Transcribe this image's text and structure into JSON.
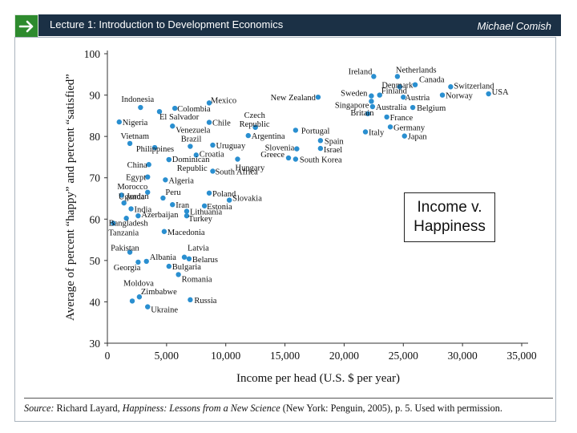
{
  "header": {
    "lecture_title": "Lecture 1: Introduction to Development Economics",
    "author": "Michael Comish",
    "icon": "arrow-right-icon",
    "colors": {
      "band": "#1b3045",
      "arrow_box": "#2e8b2e"
    }
  },
  "callout": {
    "line1": "Income v.",
    "line2": "Happiness"
  },
  "source": {
    "label": "Source:",
    "text_before": "Richard Layard,",
    "book_title": "Happiness: Lessons from a New Science",
    "text_after": "(New York: Penguin, 2005), p. 5. Used with permission."
  },
  "chart_data": {
    "type": "scatter",
    "xlabel": "Income per head (U.S. $ per year)",
    "ylabel": "Average of percent “happy” and percent “satisfied”",
    "xlim": [
      0,
      35000
    ],
    "ylim": [
      30,
      100
    ],
    "xticks": [
      0,
      5000,
      10000,
      15000,
      20000,
      25000,
      30000,
      35000
    ],
    "xtick_labels": [
      "0",
      "5,000",
      "10,000",
      "15,000",
      "20,000",
      "25,000",
      "30,000",
      "35,000"
    ],
    "yticks": [
      30,
      40,
      50,
      60,
      70,
      80,
      90,
      100
    ],
    "ytick_labels": [
      "30",
      "40",
      "50",
      "60",
      "70",
      "80",
      "90",
      "100"
    ],
    "point_color": "#2a8fd0",
    "points": [
      {
        "label": "Ireland",
        "x": 22500,
        "y": 94.5,
        "anchor": "end",
        "dx": -2,
        "dy": -3
      },
      {
        "label": "Netherlands",
        "x": 24500,
        "y": 94.5,
        "anchor": "start",
        "dx": -2,
        "dy": -5
      },
      {
        "label": "Denmark",
        "x": 24700,
        "y": 92,
        "anchor": "middle",
        "dx": -3,
        "dy": 1
      },
      {
        "label": "Canada",
        "x": 26000,
        "y": 92.5,
        "anchor": "start",
        "dx": 5,
        "dy": -3
      },
      {
        "label": "Switzerland",
        "x": 29000,
        "y": 92,
        "anchor": "start",
        "dx": 4,
        "dy": 2
      },
      {
        "label": "Finland",
        "x": 23000,
        "y": 90,
        "anchor": "start",
        "dx": 2,
        "dy": -2
      },
      {
        "label": "Sweden",
        "x": 22300,
        "y": 89.8,
        "anchor": "end",
        "dx": -5,
        "dy": 0
      },
      {
        "label": "Singapore",
        "x": 22300,
        "y": 88.5,
        "anchor": "end",
        "dx": -3,
        "dy": 8
      },
      {
        "label": "Austria",
        "x": 25000,
        "y": 89.5,
        "anchor": "start",
        "dx": 2,
        "dy": 4
      },
      {
        "label": "Norway",
        "x": 28300,
        "y": 90,
        "anchor": "start",
        "dx": 4,
        "dy": 4
      },
      {
        "label": "USA",
        "x": 32200,
        "y": 90.3,
        "anchor": "start",
        "dx": 4,
        "dy": 1
      },
      {
        "label": "New Zealand",
        "x": 17800,
        "y": 89.5,
        "anchor": "end",
        "dx": -3,
        "dy": 4
      },
      {
        "label": "Australia",
        "x": 22400,
        "y": 87.2,
        "anchor": "start",
        "dx": 4,
        "dy": 4
      },
      {
        "label": "Belgium",
        "x": 25800,
        "y": 87,
        "anchor": "start",
        "dx": 5,
        "dy": 4
      },
      {
        "label": "Britain",
        "x": 22000,
        "y": 85.5,
        "anchor": "middle",
        "dx": -7,
        "dy": 2
      },
      {
        "label": "France",
        "x": 23600,
        "y": 84.7,
        "anchor": "start",
        "dx": 4,
        "dy": 4
      },
      {
        "label": "Germany",
        "x": 23900,
        "y": 82.3,
        "anchor": "start",
        "dx": 4,
        "dy": 4
      },
      {
        "label": "Italy",
        "x": 21800,
        "y": 81.1,
        "anchor": "start",
        "dx": 4,
        "dy": 4
      },
      {
        "label": "Japan",
        "x": 25100,
        "y": 80.1,
        "anchor": "start",
        "dx": 4,
        "dy": 4
      },
      {
        "label": "Indonesia",
        "x": 2800,
        "y": 87,
        "anchor": "start",
        "dx": -24,
        "dy": -7
      },
      {
        "label": "Colombia",
        "x": 5700,
        "y": 86.8,
        "anchor": "start",
        "dx": 3,
        "dy": 4
      },
      {
        "label": "Mexico",
        "x": 8600,
        "y": 88.1,
        "anchor": "start",
        "dx": 2,
        "dy": 0
      },
      {
        "label": "El Salvador",
        "x": 4400,
        "y": 86,
        "anchor": "start",
        "dx": 0,
        "dy": 10
      },
      {
        "label": "Nigeria",
        "x": 1000,
        "y": 83.5,
        "anchor": "start",
        "dx": 4,
        "dy": 4
      },
      {
        "label": "Chile",
        "x": 8600,
        "y": 83.4,
        "anchor": "start",
        "dx": 4,
        "dy": 4
      },
      {
        "label": "Czech",
        "x": 12500,
        "y": 82.2,
        "anchor": "start",
        "dx": -14,
        "dy": -12
      },
      {
        "label": "Republic",
        "x": 12500,
        "y": 82.2,
        "anchor": "start",
        "dx": -20,
        "dy": -1
      },
      {
        "label": "Venezuela",
        "x": 5500,
        "y": 82.5,
        "anchor": "start",
        "dx": 4,
        "dy": 8
      },
      {
        "label": "Portugal",
        "x": 15900,
        "y": 81.5,
        "anchor": "start",
        "dx": 7,
        "dy": 4
      },
      {
        "label": "Argentina",
        "x": 11900,
        "y": 80.2,
        "anchor": "start",
        "dx": 4,
        "dy": 4
      },
      {
        "label": "Vietnam",
        "x": 1900,
        "y": 78.3,
        "anchor": "end",
        "dx": 24,
        "dy": -6
      },
      {
        "label": "Brazil",
        "x": 7000,
        "y": 77.6,
        "anchor": "end",
        "dx": 14,
        "dy": -6
      },
      {
        "label": "Uruguay",
        "x": 8900,
        "y": 77.9,
        "anchor": "start",
        "dx": 4,
        "dy": 4
      },
      {
        "label": "Spain",
        "x": 18000,
        "y": 79,
        "anchor": "start",
        "dx": 5,
        "dy": 4
      },
      {
        "label": "Slovenia",
        "x": 16000,
        "y": 77,
        "anchor": "end",
        "dx": -3,
        "dy": 2
      },
      {
        "label": "Israel",
        "x": 18000,
        "y": 77.1,
        "anchor": "start",
        "dx": 4,
        "dy": 5
      },
      {
        "label": "Philippines",
        "x": 4000,
        "y": 77.3,
        "anchor": "end",
        "dx": 24,
        "dy": 5
      },
      {
        "label": "Croatia",
        "x": 7500,
        "y": 75.5,
        "anchor": "start",
        "dx": 4,
        "dy": 2
      },
      {
        "label": "Greece",
        "x": 15300,
        "y": 74.8,
        "anchor": "end",
        "dx": -5,
        "dy": -1
      },
      {
        "label": "South Korea",
        "x": 15900,
        "y": 74.5,
        "anchor": "start",
        "dx": 5,
        "dy": 4
      },
      {
        "label": "Dominican",
        "x": 5200,
        "y": 74.4,
        "anchor": "start",
        "dx": 4,
        "dy": 3
      },
      {
        "label": "Republic",
        "x": 5200,
        "y": 74.4,
        "anchor": "start",
        "dx": 10,
        "dy": 14
      },
      {
        "label": "Hungary",
        "x": 11000,
        "y": 74.5,
        "anchor": "start",
        "dx": -3,
        "dy": 14
      },
      {
        "label": "China",
        "x": 3500,
        "y": 73.2,
        "anchor": "end",
        "dx": -2,
        "dy": 4
      },
      {
        "label": "South Africa",
        "x": 8900,
        "y": 71.6,
        "anchor": "start",
        "dx": 3,
        "dy": 4
      },
      {
        "label": "Egypt",
        "x": 3400,
        "y": 70.2,
        "anchor": "end",
        "dx": -2,
        "dy": 4
      },
      {
        "label": "Algeria",
        "x": 4900,
        "y": 69.5,
        "anchor": "start",
        "dx": 4,
        "dy": 4
      },
      {
        "label": "Morocco",
        "x": 3400,
        "y": 66.5,
        "anchor": "end",
        "dx": 0,
        "dy": -4
      },
      {
        "label": "Uganda",
        "x": 1200,
        "y": 65.8,
        "anchor": "start",
        "dx": -4,
        "dy": 5
      },
      {
        "label": "Poland",
        "x": 8600,
        "y": 66.3,
        "anchor": "start",
        "dx": 4,
        "dy": 4
      },
      {
        "label": "Peru",
        "x": 4700,
        "y": 65.1,
        "anchor": "start",
        "dx": 3,
        "dy": -4
      },
      {
        "label": "Slovakia",
        "x": 10300,
        "y": 64.6,
        "anchor": "start",
        "dx": 4,
        "dy": 1
      },
      {
        "label": "Jordan",
        "x": 1400,
        "y": 63.9,
        "anchor": "start",
        "dx": 3,
        "dy": -5
      },
      {
        "label": "India",
        "x": 2000,
        "y": 62.5,
        "anchor": "start",
        "dx": 4,
        "dy": 4
      },
      {
        "label": "Iran",
        "x": 5500,
        "y": 63.5,
        "anchor": "start",
        "dx": 4,
        "dy": 4
      },
      {
        "label": "Estonia",
        "x": 8200,
        "y": 63.2,
        "anchor": "start",
        "dx": 3,
        "dy": 4
      },
      {
        "label": "Lithuania",
        "x": 6700,
        "y": 61.9,
        "anchor": "start",
        "dx": 4,
        "dy": 4
      },
      {
        "label": "Azerbaijan",
        "x": 2600,
        "y": 60.8,
        "anchor": "start",
        "dx": 4,
        "dy": 2
      },
      {
        "label": "Turkey",
        "x": 6700,
        "y": 60.8,
        "anchor": "start",
        "dx": 2,
        "dy": 7
      },
      {
        "label": "Bangladesh",
        "x": 1600,
        "y": 60.2,
        "anchor": "start",
        "dx": -22,
        "dy": 9
      },
      {
        "label": "Tanzania",
        "x": 500,
        "y": 59,
        "anchor": "start",
        "dx": -6,
        "dy": 15
      },
      {
        "label": "Macedonia",
        "x": 4800,
        "y": 57,
        "anchor": "start",
        "dx": 4,
        "dy": 4
      },
      {
        "label": "Pakistan",
        "x": 1900,
        "y": 52,
        "anchor": "start",
        "dx": -24,
        "dy": -2
      },
      {
        "label": "Albania",
        "x": 3300,
        "y": 49.8,
        "anchor": "start",
        "dx": 4,
        "dy": -2
      },
      {
        "label": "Latvia",
        "x": 6500,
        "y": 50.8,
        "anchor": "start",
        "dx": 4,
        "dy": -8
      },
      {
        "label": "Belarus",
        "x": 6900,
        "y": 50.4,
        "anchor": "start",
        "dx": 4,
        "dy": 4
      },
      {
        "label": "Georgia",
        "x": 2600,
        "y": 49.6,
        "anchor": "end",
        "dx": 3,
        "dy": 10
      },
      {
        "label": "Bulgaria",
        "x": 5200,
        "y": 48.6,
        "anchor": "start",
        "dx": 4,
        "dy": 4
      },
      {
        "label": "Romania",
        "x": 6000,
        "y": 46.6,
        "anchor": "start",
        "dx": 4,
        "dy": 9
      },
      {
        "label": "Moldova",
        "x": 2100,
        "y": 40.2,
        "anchor": "start",
        "dx": -11,
        "dy": -19
      },
      {
        "label": "Zimbabwe",
        "x": 2700,
        "y": 41.2,
        "anchor": "start",
        "dx": 2,
        "dy": -3
      },
      {
        "label": "Russia",
        "x": 7000,
        "y": 40.5,
        "anchor": "start",
        "dx": 5,
        "dy": 4
      },
      {
        "label": "Ukraine",
        "x": 3400,
        "y": 38.8,
        "anchor": "start",
        "dx": 4,
        "dy": 7
      }
    ]
  }
}
